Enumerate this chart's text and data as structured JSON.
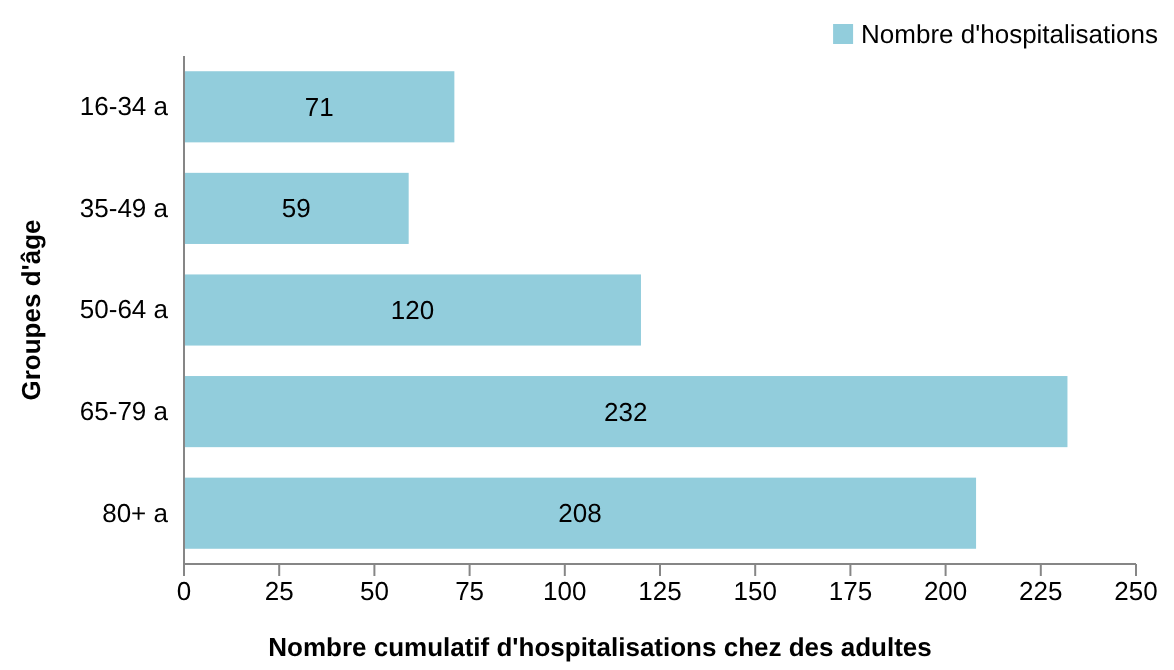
{
  "chart_data": {
    "type": "bar",
    "orientation": "horizontal",
    "xlabel": "Nombre cumulatif d'hospitalisations chez des adultes",
    "ylabel": "Groupes d'âge",
    "categories": [
      "16-34 a",
      "35-49 a",
      "50-64 a",
      "65-79 a",
      "80+ a"
    ],
    "series": [
      {
        "name": "Nombre d'hospitalisations",
        "color": "#92cddc",
        "values": [
          71,
          59,
          120,
          232,
          208
        ]
      }
    ],
    "xlim": [
      0,
      250
    ],
    "xticks": [
      0,
      25,
      50,
      75,
      100,
      125,
      150,
      175,
      200,
      225,
      250
    ],
    "data_labels": true,
    "legend": "top right",
    "grid": false
  }
}
